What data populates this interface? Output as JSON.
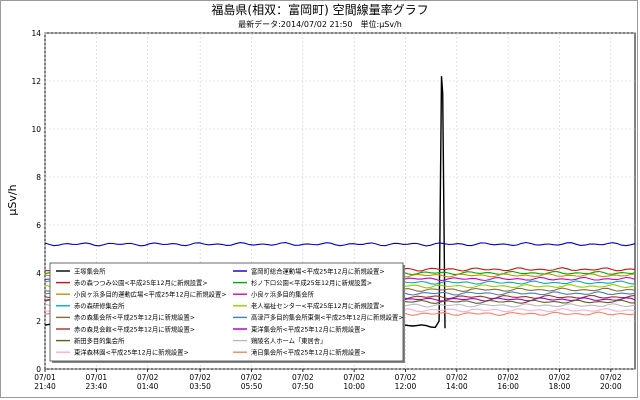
{
  "chart_data": {
    "type": "line",
    "title": "福島県(相双：富岡町) 空間線量率グラフ",
    "subtitle": "最新データ:2014/07/02 21:50　単位:μSv/h",
    "ylabel": "μSv/h",
    "ylim": [
      0,
      14
    ],
    "yticks": [
      "0",
      "2",
      "4",
      "6",
      "8",
      "10",
      "12",
      "14"
    ],
    "xlim": [
      0,
      100
    ],
    "xticks": [
      {
        "x": 0,
        "label1": "07/01",
        "label2": "21:40"
      },
      {
        "x": 8.7,
        "label1": "07/01",
        "label2": "23:40"
      },
      {
        "x": 17.4,
        "label1": "07/02",
        "label2": "01:40"
      },
      {
        "x": 26.3,
        "label1": "07/02",
        "label2": "03:50"
      },
      {
        "x": 35.0,
        "label1": "07/02",
        "label2": "05:50"
      },
      {
        "x": 43.7,
        "label1": "07/02",
        "label2": "07:50"
      },
      {
        "x": 52.4,
        "label1": "07/02",
        "label2": "10:00"
      },
      {
        "x": 61.1,
        "label1": "07/02",
        "label2": "12:00"
      },
      {
        "x": 69.8,
        "label1": "07/02",
        "label2": "14:00"
      },
      {
        "x": 78.5,
        "label1": "07/02",
        "label2": "16:00"
      },
      {
        "x": 87.2,
        "label1": "07/02",
        "label2": "18:00"
      },
      {
        "x": 95.9,
        "label1": "07/02",
        "label2": "20:00"
      }
    ],
    "grid": true,
    "legend_position": "bottom-left",
    "series": [
      {
        "name": "王塚集会所",
        "color": "#000000",
        "base": 1.8,
        "spike": true
      },
      {
        "name": "富岡町総合運動場<平成25年12月に新規設置>",
        "color": "#0000cc",
        "base": 5.2
      },
      {
        "name": "赤の森つつみ公園<平成25年12月に新規設置>",
        "color": "#d01010",
        "base": 4.15
      },
      {
        "name": "杉ノ下口公園<平成25年12月に新規設置>",
        "color": "#00aa00",
        "base": 4.0
      },
      {
        "name": "小良ヶ浜多目的運動広場<平成25年12月に新規設置>",
        "color": "#c89000",
        "base": 3.9
      },
      {
        "name": "小良ヶ浜多目的集会所",
        "color": "#cc00cc",
        "base": 3.75
      },
      {
        "name": "赤の森研修集会所",
        "color": "#00b0b0",
        "base": 3.6
      },
      {
        "name": "老人福祉センター<平成25年12月に新規設置>",
        "color": "#99cc00",
        "base": 3.45
      },
      {
        "name": "赤の森集会所<平成25年12月に新規設置>",
        "color": "#8a6a3a",
        "base": 3.3
      },
      {
        "name": "高津戸多目的集会所東側<平成25年12月に新規設置>",
        "color": "#4080c0",
        "base": 3.15
      },
      {
        "name": "赤の森見会館<平成25年12月に新規設置>",
        "color": "#a03030",
        "base": 3.0
      },
      {
        "name": "東洋集会所<平成25年12月に新規設置>",
        "color": "#a000c0",
        "base": 2.9
      },
      {
        "name": "新田多目的集会所",
        "color": "#606020",
        "base": 2.8
      },
      {
        "name": "鶏陵名人ホーム「東居舎」",
        "color": "#bbbbbb",
        "base": 2.65
      },
      {
        "name": "東洋森林園<平成25年12月に新規設置>",
        "color": "#ffaadd",
        "base": 2.45
      },
      {
        "name": "滝日集会所<平成25年12月に新規設置>",
        "color": "#ff8060",
        "base": 2.3
      }
    ]
  }
}
